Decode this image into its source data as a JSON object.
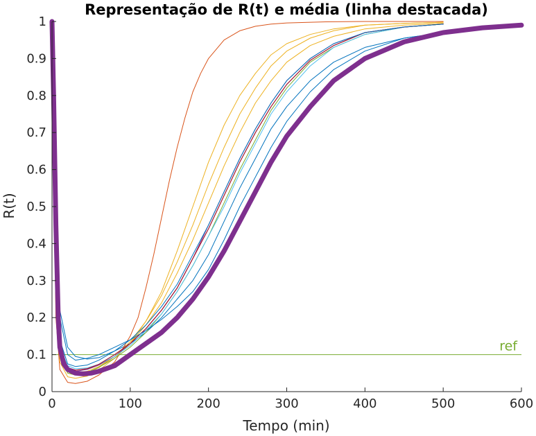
{
  "chart_data": {
    "type": "line",
    "title": "Representação de R(t) e média (linha destacada)",
    "xlabel": "Tempo (min)",
    "ylabel": "R(t)",
    "xlim": [
      0,
      600
    ],
    "ylim": [
      0,
      1
    ],
    "xticks": [
      "0",
      "100",
      "200",
      "300",
      "400",
      "500",
      "600"
    ],
    "yticks": [
      "0",
      "0.1",
      "0.2",
      "0.3",
      "0.4",
      "0.5",
      "0.6",
      "0.7",
      "0.8",
      "0.9",
      "1"
    ],
    "grid": false,
    "series": [
      {
        "color": "#0072BD",
        "width": 1,
        "x": [
          0,
          5,
          10,
          20,
          30,
          45,
          60,
          80,
          100,
          120,
          140,
          160,
          180,
          200,
          220,
          240,
          260,
          280,
          300,
          330,
          360,
          400,
          450,
          500
        ],
        "y": [
          1.0,
          0.45,
          0.22,
          0.12,
          0.095,
          0.088,
          0.092,
          0.11,
          0.13,
          0.16,
          0.2,
          0.25,
          0.3,
          0.37,
          0.46,
          0.55,
          0.63,
          0.71,
          0.77,
          0.84,
          0.89,
          0.93,
          0.955,
          0.97
        ]
      },
      {
        "color": "#D95319",
        "width": 1,
        "x": [
          0,
          5,
          10,
          20,
          30,
          45,
          60,
          80,
          100,
          110,
          120,
          130,
          140,
          150,
          160,
          170,
          180,
          190,
          200,
          220,
          240,
          260,
          280,
          300,
          350,
          400,
          450,
          500
        ],
        "y": [
          1.0,
          0.2,
          0.06,
          0.025,
          0.022,
          0.028,
          0.045,
          0.08,
          0.15,
          0.2,
          0.28,
          0.37,
          0.47,
          0.57,
          0.66,
          0.74,
          0.81,
          0.86,
          0.9,
          0.95,
          0.975,
          0.987,
          0.993,
          0.996,
          0.999,
          1.0,
          1.0,
          1.0
        ]
      },
      {
        "color": "#EDB120",
        "width": 1,
        "x": [
          0,
          5,
          10,
          20,
          30,
          45,
          60,
          80,
          100,
          120,
          140,
          160,
          180,
          200,
          220,
          240,
          260,
          280,
          300,
          330,
          360,
          400,
          450,
          500
        ],
        "y": [
          1.0,
          0.25,
          0.08,
          0.04,
          0.036,
          0.042,
          0.058,
          0.09,
          0.13,
          0.19,
          0.27,
          0.38,
          0.5,
          0.62,
          0.72,
          0.8,
          0.86,
          0.91,
          0.94,
          0.965,
          0.98,
          0.99,
          0.995,
          0.998
        ]
      },
      {
        "color": "#EDB120",
        "width": 1,
        "x": [
          0,
          5,
          10,
          20,
          30,
          45,
          60,
          80,
          100,
          120,
          140,
          160,
          180,
          200,
          220,
          240,
          260,
          280,
          300,
          330,
          360,
          400,
          450,
          500
        ],
        "y": [
          1.0,
          0.3,
          0.1,
          0.05,
          0.045,
          0.05,
          0.065,
          0.095,
          0.135,
          0.19,
          0.26,
          0.35,
          0.45,
          0.56,
          0.66,
          0.75,
          0.82,
          0.88,
          0.92,
          0.955,
          0.975,
          0.99,
          0.995,
          0.998
        ]
      },
      {
        "color": "#EDB120",
        "width": 1,
        "x": [
          0,
          5,
          10,
          20,
          30,
          45,
          60,
          80,
          100,
          120,
          140,
          160,
          180,
          200,
          220,
          240,
          260,
          280,
          300,
          330,
          360,
          400,
          450,
          500
        ],
        "y": [
          1.0,
          0.35,
          0.12,
          0.06,
          0.052,
          0.055,
          0.068,
          0.095,
          0.13,
          0.18,
          0.24,
          0.32,
          0.41,
          0.51,
          0.61,
          0.7,
          0.78,
          0.84,
          0.89,
          0.935,
          0.96,
          0.98,
          0.99,
          0.995
        ]
      },
      {
        "color": "#7E2F8E",
        "width": 1,
        "x": [
          0,
          5,
          10,
          20,
          30,
          45,
          60,
          80,
          100,
          120,
          140,
          160,
          180,
          200,
          220,
          240,
          260,
          280,
          300,
          330,
          360,
          400,
          450,
          500
        ],
        "y": [
          1.0,
          0.3,
          0.11,
          0.06,
          0.055,
          0.06,
          0.072,
          0.095,
          0.13,
          0.17,
          0.22,
          0.28,
          0.36,
          0.45,
          0.54,
          0.63,
          0.71,
          0.78,
          0.84,
          0.9,
          0.94,
          0.97,
          0.985,
          0.993
        ]
      },
      {
        "color": "#77AC30",
        "width": 1,
        "x": [
          0,
          5,
          10,
          20,
          30,
          45,
          60,
          80,
          100,
          120,
          140,
          160,
          180,
          200,
          220,
          240,
          260,
          280,
          300,
          330,
          360,
          400,
          450,
          500
        ],
        "y": [
          1.0,
          0.3,
          0.1,
          0.05,
          0.045,
          0.052,
          0.066,
          0.09,
          0.12,
          0.16,
          0.21,
          0.27,
          0.34,
          0.42,
          0.51,
          0.6,
          0.68,
          0.76,
          0.82,
          0.89,
          0.93,
          0.965,
          0.985,
          0.993
        ]
      },
      {
        "color": "#4DBEEE",
        "width": 1,
        "x": [
          0,
          5,
          10,
          20,
          30,
          45,
          60,
          80,
          100,
          120,
          140,
          160,
          180,
          200,
          220,
          240,
          260,
          280,
          300,
          330,
          360,
          400,
          450,
          500
        ],
        "y": [
          1.0,
          0.32,
          0.12,
          0.07,
          0.062,
          0.064,
          0.074,
          0.095,
          0.125,
          0.165,
          0.21,
          0.27,
          0.34,
          0.42,
          0.5,
          0.59,
          0.67,
          0.75,
          0.81,
          0.88,
          0.93,
          0.965,
          0.985,
          0.993
        ]
      },
      {
        "color": "#A2142F",
        "width": 1.2,
        "x": [
          0,
          5,
          10,
          20,
          30,
          45,
          60,
          80,
          100,
          120,
          140,
          160,
          180,
          200,
          220,
          240,
          260,
          280,
          300,
          330,
          360,
          400,
          450,
          500
        ],
        "y": [
          1.0,
          0.33,
          0.12,
          0.065,
          0.058,
          0.062,
          0.074,
          0.1,
          0.13,
          0.17,
          0.22,
          0.28,
          0.36,
          0.44,
          0.53,
          0.62,
          0.7,
          0.77,
          0.83,
          0.895,
          0.935,
          0.97,
          0.985,
          0.993
        ]
      },
      {
        "color": "#0072BD",
        "width": 1,
        "x": [
          0,
          5,
          10,
          20,
          30,
          45,
          60,
          80,
          100,
          120,
          140,
          160,
          180,
          200,
          220,
          240,
          260,
          280,
          300,
          330,
          360,
          400,
          450,
          500
        ],
        "y": [
          1.0,
          0.38,
          0.14,
          0.075,
          0.068,
          0.072,
          0.085,
          0.11,
          0.14,
          0.18,
          0.23,
          0.29,
          0.37,
          0.45,
          0.54,
          0.63,
          0.71,
          0.78,
          0.84,
          0.9,
          0.94,
          0.97,
          0.985,
          0.993
        ]
      },
      {
        "color": "#0072BD",
        "width": 1,
        "x": [
          0,
          5,
          10,
          20,
          30,
          45,
          60,
          80,
          100,
          120,
          140,
          160,
          180,
          200,
          220,
          240,
          260,
          280,
          300,
          330,
          360,
          400,
          450,
          500
        ],
        "y": [
          1.0,
          0.5,
          0.2,
          0.1,
          0.085,
          0.09,
          0.1,
          0.12,
          0.14,
          0.165,
          0.195,
          0.23,
          0.27,
          0.33,
          0.41,
          0.5,
          0.58,
          0.66,
          0.73,
          0.81,
          0.87,
          0.92,
          0.955,
          0.97
        ]
      },
      {
        "color": "#7E2F8E",
        "width": 7,
        "x": [
          0,
          2,
          5,
          8,
          10,
          15,
          20,
          30,
          40,
          50,
          60,
          80,
          100,
          120,
          140,
          160,
          180,
          200,
          220,
          240,
          260,
          280,
          300,
          330,
          360,
          400,
          450,
          500,
          550,
          600
        ],
        "y": [
          1.0,
          0.8,
          0.45,
          0.2,
          0.12,
          0.075,
          0.06,
          0.05,
          0.048,
          0.05,
          0.055,
          0.07,
          0.1,
          0.13,
          0.16,
          0.2,
          0.25,
          0.31,
          0.38,
          0.46,
          0.54,
          0.62,
          0.69,
          0.77,
          0.84,
          0.9,
          0.945,
          0.97,
          0.983,
          0.99
        ]
      }
    ],
    "reference": {
      "label": "ref",
      "y": 0.1,
      "color": "#77AC30"
    }
  }
}
